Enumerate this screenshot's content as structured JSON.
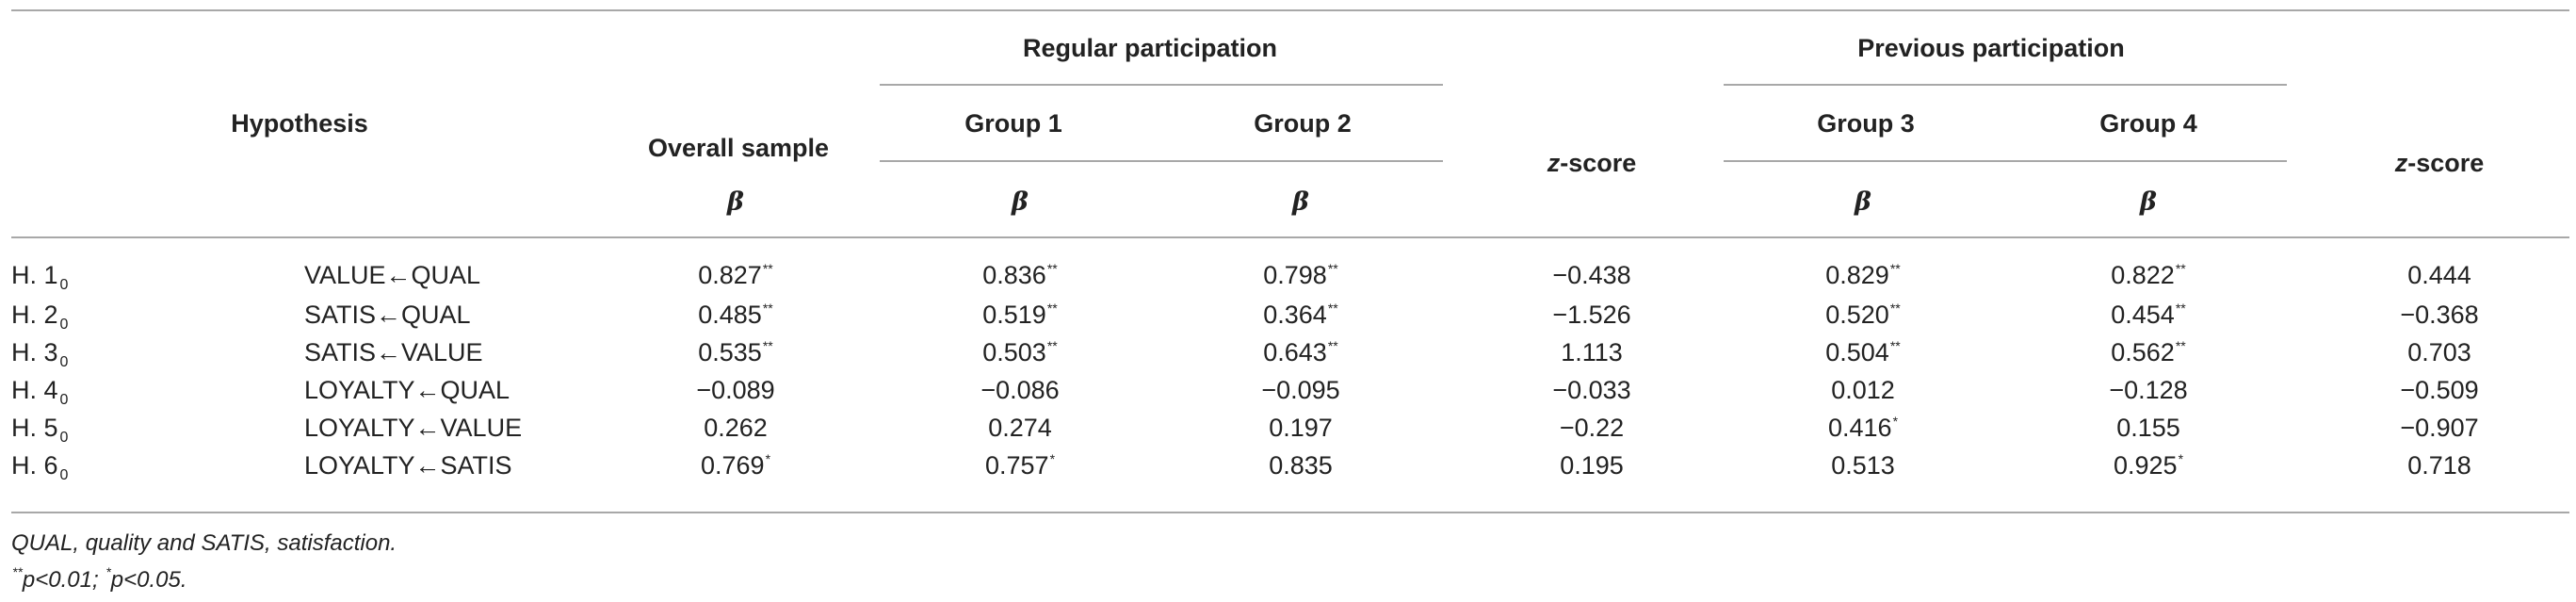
{
  "table": {
    "headers": {
      "hypothesis": "Hypothesis",
      "overall_sample": "Overall sample",
      "regular_participation": "Regular participation",
      "previous_participation": "Previous participation",
      "group1": "Group 1",
      "group2": "Group 2",
      "group3": "Group 3",
      "group4": "Group 4",
      "beta": "β",
      "z_italic": "z",
      "z_rest": "-score"
    },
    "rows": [
      {
        "label": "H. 1",
        "label_sub": "0",
        "path": "VALUE←QUAL",
        "overall": "0.827",
        "overall_sig": "**",
        "g1": "0.836",
        "g1_sig": "**",
        "g2": "0.798",
        "g2_sig": "**",
        "z1": "−0.438",
        "g3": "0.829",
        "g3_sig": "**",
        "g4": "0.822",
        "g4_sig": "**",
        "z2": "0.444"
      },
      {
        "label": "H. 2",
        "label_sub": "0",
        "path": "SATIS←QUAL",
        "overall": "0.485",
        "overall_sig": "**",
        "g1": "0.519",
        "g1_sig": "**",
        "g2": "0.364",
        "g2_sig": "**",
        "z1": "−1.526",
        "g3": "0.520",
        "g3_sig": "**",
        "g4": "0.454",
        "g4_sig": "**",
        "z2": "−0.368"
      },
      {
        "label": "H. 3",
        "label_sub": "0",
        "path": "SATIS←VALUE",
        "overall": "0.535",
        "overall_sig": "**",
        "g1": "0.503",
        "g1_sig": "**",
        "g2": "0.643",
        "g2_sig": "**",
        "z1": "1.113",
        "g3": "0.504",
        "g3_sig": "**",
        "g4": "0.562",
        "g4_sig": "**",
        "z2": "0.703"
      },
      {
        "label": "H. 4",
        "label_sub": "0",
        "path": "LOYALTY←QUAL",
        "overall": "−0.089",
        "overall_sig": "",
        "g1": "−0.086",
        "g1_sig": "",
        "g2": "−0.095",
        "g2_sig": "",
        "z1": "−0.033",
        "g3": "0.012",
        "g3_sig": "",
        "g4": "−0.128",
        "g4_sig": "",
        "z2": "−0.509"
      },
      {
        "label": "H. 5",
        "label_sub": "0",
        "path": "LOYALTY←VALUE",
        "overall": "0.262",
        "overall_sig": "",
        "g1": "0.274",
        "g1_sig": "",
        "g2": "0.197",
        "g2_sig": "",
        "z1": "−0.22",
        "g3": "0.416",
        "g3_sig": "*",
        "g4": "0.155",
        "g4_sig": "",
        "z2": "−0.907"
      },
      {
        "label": "H. 6",
        "label_sub": "0",
        "path": "LOYALTY←SATIS",
        "overall": "0.769",
        "overall_sig": "*",
        "g1": "0.757",
        "g1_sig": "*",
        "g2": "0.835",
        "g2_sig": "",
        "z1": "0.195",
        "g3": "0.513",
        "g3_sig": "",
        "g4": "0.925",
        "g4_sig": "*",
        "z2": "0.718"
      }
    ],
    "footnotes": {
      "abbreviations": "QUAL, quality and SATIS, satisfaction.",
      "sig_mark_1": "**",
      "sig_text_1": "p<0.01; ",
      "sig_mark_2": "*",
      "sig_text_2": "p<0.05."
    }
  }
}
